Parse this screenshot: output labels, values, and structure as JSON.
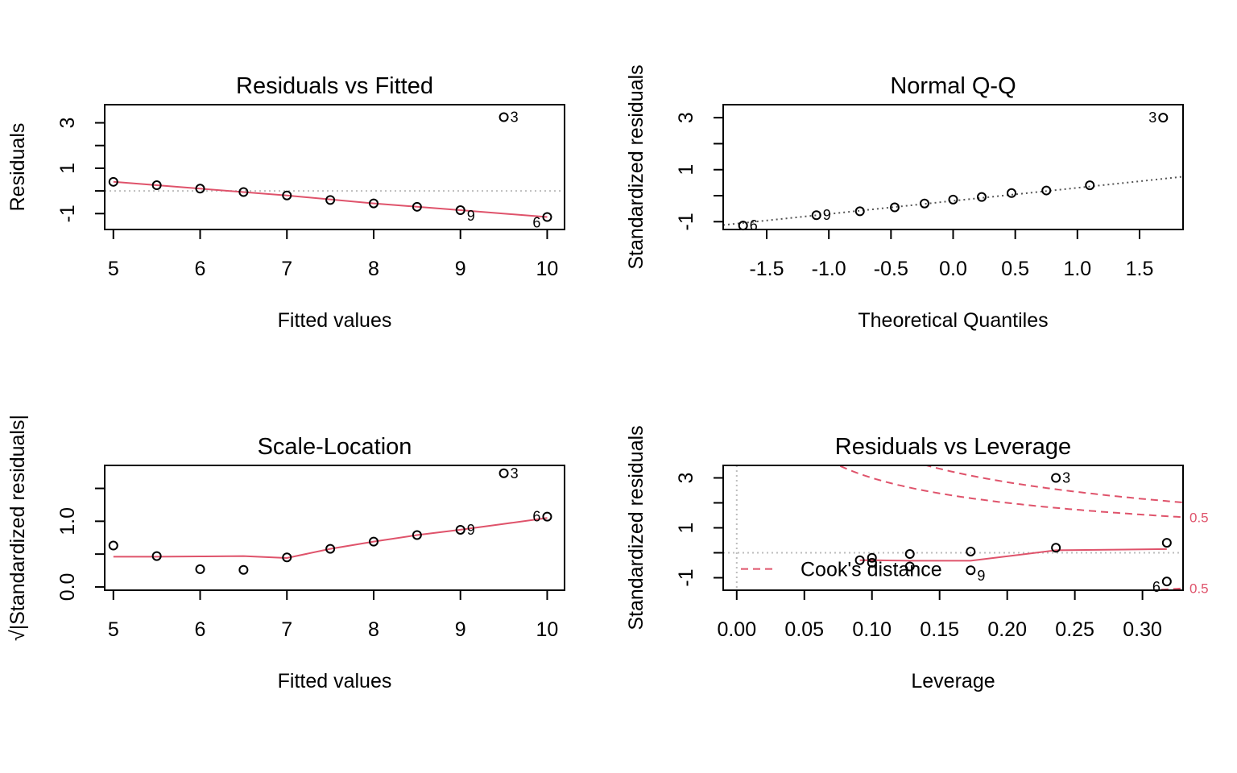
{
  "chart_data": [
    {
      "type": "scatter",
      "title": "Residuals vs Fitted",
      "xlabel": "Fitted values",
      "ylabel": "Residuals",
      "xlim": [
        4.9,
        10.2
      ],
      "ylim": [
        -1.7,
        3.8
      ],
      "xticks": [
        5,
        6,
        7,
        8,
        9,
        10
      ],
      "xtick_labels": [
        "5",
        "6",
        "7",
        "8",
        "9",
        "10"
      ],
      "yticks": [
        -1,
        0,
        1,
        2,
        3
      ],
      "ytick_labels": [
        "-1",
        "",
        "1",
        "",
        "3"
      ],
      "points": [
        {
          "x": 5.0,
          "y": 0.4
        },
        {
          "x": 5.5,
          "y": 0.25
        },
        {
          "x": 6.0,
          "y": 0.1
        },
        {
          "x": 6.5,
          "y": -0.05
        },
        {
          "x": 7.0,
          "y": -0.2
        },
        {
          "x": 7.5,
          "y": -0.4
        },
        {
          "x": 8.0,
          "y": -0.55
        },
        {
          "x": 8.5,
          "y": -0.7
        },
        {
          "x": 9.0,
          "y": -0.85
        },
        {
          "x": 9.5,
          "y": 3.25
        },
        {
          "x": 10.0,
          "y": -1.15
        }
      ],
      "point_labels": [
        {
          "x": 9.5,
          "y": 3.25,
          "text": "3",
          "side": "right"
        },
        {
          "x": 9.0,
          "y": -0.85,
          "text": "9",
          "side": "right-below"
        },
        {
          "x": 10.0,
          "y": -1.15,
          "text": "6",
          "side": "left-below"
        }
      ],
      "smooth": {
        "x": [
          5.0,
          6.0,
          7.0,
          8.0,
          9.0,
          10.0
        ],
        "y": [
          0.4,
          0.1,
          -0.2,
          -0.55,
          -0.85,
          -1.15
        ]
      },
      "ref_h": 0
    },
    {
      "type": "scatter",
      "title": "Normal Q-Q",
      "xlabel": "Theoretical Quantiles",
      "ylabel": "Standardized residuals",
      "xlim": [
        -1.85,
        1.85
      ],
      "ylim": [
        -1.3,
        3.5
      ],
      "xticks": [
        -1.5,
        -1.0,
        -0.5,
        0.0,
        0.5,
        1.0,
        1.5
      ],
      "xtick_labels": [
        "-1.5",
        "-1.0",
        "-0.5",
        "0.0",
        "0.5",
        "1.0",
        "1.5"
      ],
      "yticks": [
        -1,
        0,
        1,
        2,
        3
      ],
      "ytick_labels": [
        "-1",
        "",
        "1",
        "",
        "3"
      ],
      "points": [
        {
          "x": -1.69,
          "y": -1.15
        },
        {
          "x": -1.1,
          "y": -0.75
        },
        {
          "x": -0.75,
          "y": -0.6
        },
        {
          "x": -0.47,
          "y": -0.45
        },
        {
          "x": -0.23,
          "y": -0.3
        },
        {
          "x": 0.0,
          "y": -0.15
        },
        {
          "x": 0.23,
          "y": -0.05
        },
        {
          "x": 0.47,
          "y": 0.1
        },
        {
          "x": 0.75,
          "y": 0.2
        },
        {
          "x": 1.1,
          "y": 0.4
        },
        {
          "x": 1.69,
          "y": 3.0
        }
      ],
      "point_labels": [
        {
          "x": 1.69,
          "y": 3.0,
          "text": "3",
          "side": "left"
        },
        {
          "x": -1.1,
          "y": -0.75,
          "text": "9",
          "side": "right"
        },
        {
          "x": -1.69,
          "y": -1.15,
          "text": "6",
          "side": "right"
        }
      ],
      "qqline": {
        "x": [
          -1.85,
          1.85
        ],
        "y": [
          -1.13,
          0.73
        ]
      }
    },
    {
      "type": "scatter",
      "title": "Scale-Location",
      "xlabel": "Fitted values",
      "ylabel": "√|Standardized residuals|",
      "xlim": [
        4.9,
        10.2
      ],
      "ylim": [
        -0.05,
        1.85
      ],
      "xticks": [
        5,
        6,
        7,
        8,
        9,
        10
      ],
      "xtick_labels": [
        "5",
        "6",
        "7",
        "8",
        "9",
        "10"
      ],
      "yticks": [
        0.0,
        0.5,
        1.0,
        1.5
      ],
      "ytick_labels": [
        "0.0",
        "",
        "1.0",
        ""
      ],
      "points": [
        {
          "x": 5.0,
          "y": 0.63
        },
        {
          "x": 5.5,
          "y": 0.47
        },
        {
          "x": 6.0,
          "y": 0.27
        },
        {
          "x": 6.5,
          "y": 0.26
        },
        {
          "x": 7.0,
          "y": 0.45
        },
        {
          "x": 7.5,
          "y": 0.58
        },
        {
          "x": 8.0,
          "y": 0.69
        },
        {
          "x": 8.5,
          "y": 0.79
        },
        {
          "x": 9.0,
          "y": 0.87
        },
        {
          "x": 9.5,
          "y": 1.73
        },
        {
          "x": 10.0,
          "y": 1.07
        }
      ],
      "point_labels": [
        {
          "x": 9.5,
          "y": 1.73,
          "text": "3",
          "side": "right"
        },
        {
          "x": 9.0,
          "y": 0.87,
          "text": "9",
          "side": "right"
        },
        {
          "x": 10.0,
          "y": 1.07,
          "text": "6",
          "side": "left"
        }
      ],
      "smooth": {
        "x": [
          5.0,
          5.5,
          6.0,
          6.5,
          7.0,
          7.5,
          8.0,
          8.5,
          9.0,
          9.5,
          10.0
        ],
        "y": [
          0.46,
          0.46,
          0.465,
          0.47,
          0.44,
          0.58,
          0.69,
          0.79,
          0.87,
          0.96,
          1.05
        ]
      }
    },
    {
      "type": "scatter",
      "title": "Residuals vs Leverage",
      "xlabel": "Leverage",
      "ylabel": "Standardized residuals",
      "xlim": [
        -0.01,
        0.33
      ],
      "ylim": [
        -1.5,
        3.5
      ],
      "xticks": [
        0.0,
        0.05,
        0.1,
        0.15,
        0.2,
        0.25,
        0.3
      ],
      "xtick_labels": [
        "0.00",
        "0.05",
        "0.10",
        "0.15",
        "0.20",
        "0.25",
        "0.30"
      ],
      "yticks": [
        -1,
        0,
        1,
        2,
        3
      ],
      "ytick_labels": [
        "-1",
        "",
        "1",
        "",
        "3"
      ],
      "points": [
        {
          "x": 0.091,
          "y": -0.3
        },
        {
          "x": 0.1,
          "y": -0.2
        },
        {
          "x": 0.1,
          "y": -0.4
        },
        {
          "x": 0.128,
          "y": -0.05
        },
        {
          "x": 0.128,
          "y": -0.55
        },
        {
          "x": 0.173,
          "y": 0.05
        },
        {
          "x": 0.173,
          "y": -0.7
        },
        {
          "x": 0.236,
          "y": 0.2
        },
        {
          "x": 0.236,
          "y": 3.0
        },
        {
          "x": 0.318,
          "y": 0.4
        },
        {
          "x": 0.318,
          "y": -1.15
        }
      ],
      "point_labels": [
        {
          "x": 0.236,
          "y": 3.0,
          "text": "3",
          "side": "right"
        },
        {
          "x": 0.173,
          "y": -0.7,
          "text": "9",
          "side": "right-below"
        },
        {
          "x": 0.318,
          "y": -1.15,
          "text": "6",
          "side": "left-below"
        }
      ],
      "smooth": {
        "x": [
          0.091,
          0.1,
          0.128,
          0.173,
          0.236,
          0.318
        ],
        "y": [
          -0.3,
          -0.3,
          -0.32,
          -0.32,
          0.1,
          0.15
        ]
      },
      "cook_levels": [
        0.5,
        1
      ],
      "cook_side_labels": [
        "0.5",
        "0.5"
      ],
      "legend": {
        "label": "Cook's distance",
        "position": "bottom-left"
      }
    }
  ]
}
